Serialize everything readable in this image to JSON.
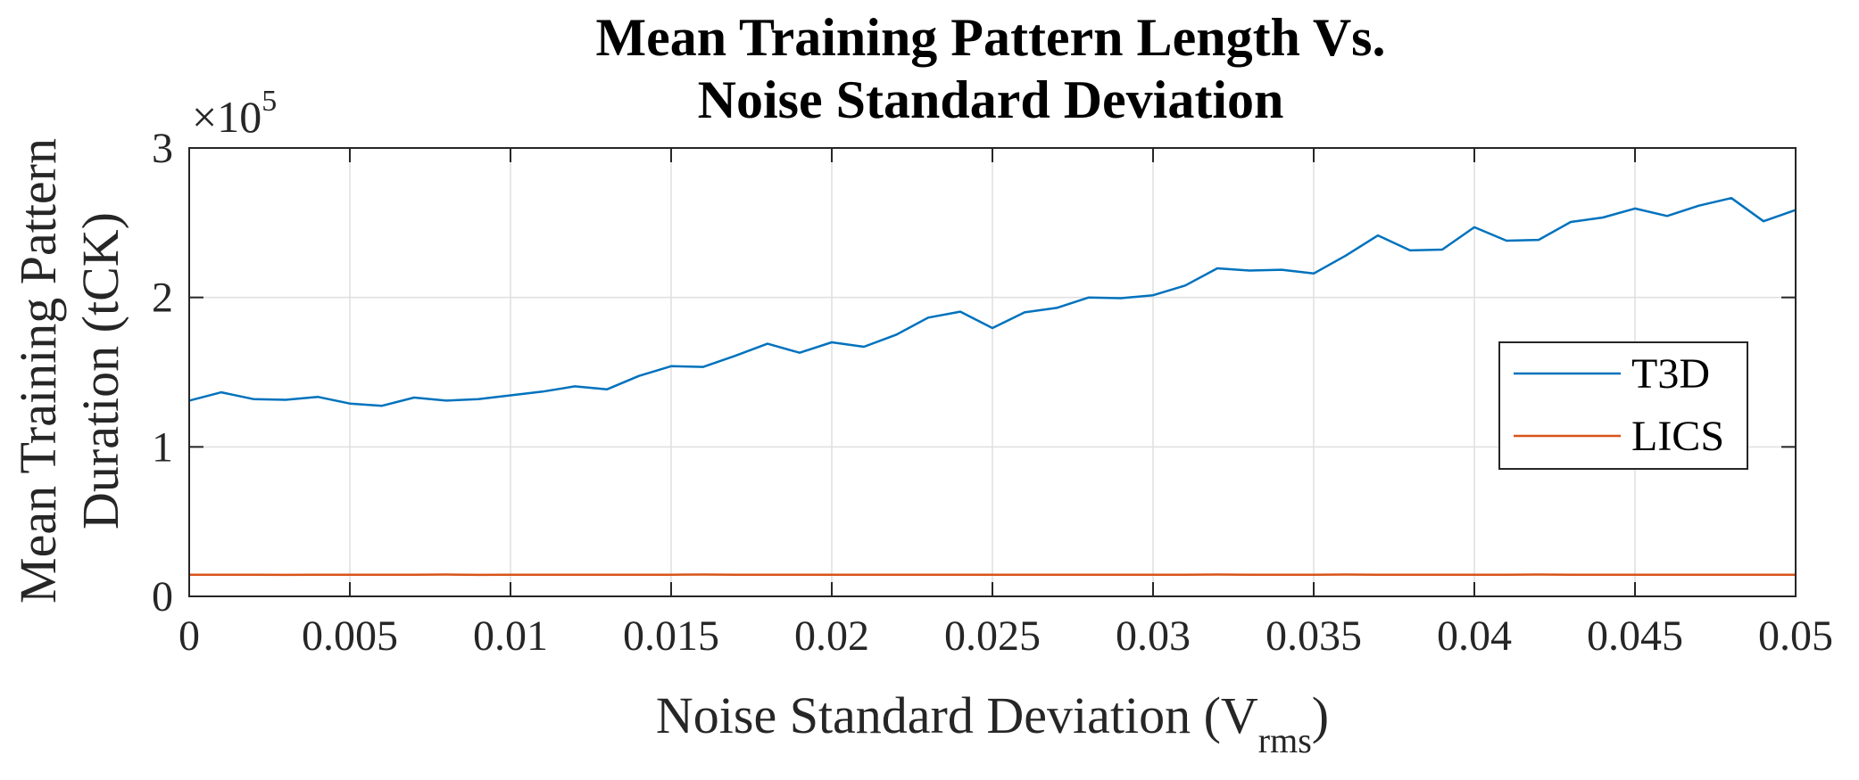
{
  "chart_data": {
    "type": "line",
    "title": [
      "Mean Training Pattern Length Vs.",
      "Noise Standard Deviation"
    ],
    "xlabel": "Noise Standard Deviation (V",
    "xlabel_sub": "rms",
    "xlabel_suffix": ")",
    "ylabel": [
      "Mean Training Pattern",
      "Duration (tCK)"
    ],
    "y_exponent_prefix": "×10",
    "y_exponent": "5",
    "xlim": [
      0,
      0.05
    ],
    "ylim": [
      0,
      300000
    ],
    "xticks": [
      0,
      0.005,
      0.01,
      0.015,
      0.02,
      0.025,
      0.03,
      0.035,
      0.04,
      0.045,
      0.05
    ],
    "xtick_labels": [
      "0",
      "0.005",
      "0.01",
      "0.015",
      "0.02",
      "0.025",
      "0.03",
      "0.035",
      "0.04",
      "0.045",
      "0.05"
    ],
    "yticks": [
      0,
      100000,
      200000,
      300000
    ],
    "ytick_labels": [
      "0",
      "1",
      "2",
      "3"
    ],
    "grid": true,
    "legend_position": "right-middle",
    "x": [
      0,
      0.001,
      0.002,
      0.003,
      0.004,
      0.005,
      0.006,
      0.007,
      0.008,
      0.009,
      0.01,
      0.011,
      0.012,
      0.013,
      0.014,
      0.015,
      0.016,
      0.017,
      0.018,
      0.019,
      0.02,
      0.021,
      0.022,
      0.023,
      0.024,
      0.025,
      0.026,
      0.027,
      0.028,
      0.029,
      0.03,
      0.031,
      0.032,
      0.033,
      0.034,
      0.035,
      0.036,
      0.037,
      0.038,
      0.039,
      0.04,
      0.041,
      0.042,
      0.043,
      0.044,
      0.045,
      0.046,
      0.047,
      0.048,
      0.049,
      0.05
    ],
    "series": [
      {
        "name": "T3D",
        "color": "#0072BD",
        "values": [
          131000,
          136500,
          132000,
          131500,
          133500,
          129000,
          127500,
          133000,
          131000,
          132000,
          134500,
          137000,
          140500,
          138500,
          147500,
          154000,
          153500,
          161000,
          169000,
          163000,
          170000,
          167000,
          175000,
          186500,
          190500,
          179500,
          190000,
          193000,
          200000,
          199500,
          201500,
          208000,
          219500,
          218000,
          218500,
          216000,
          228000,
          241500,
          231500,
          232000,
          247000,
          238000,
          238500,
          250500,
          253500,
          259500,
          254500,
          261500,
          266500,
          251000,
          258500
        ]
      },
      {
        "name": "LICS",
        "color": "#D95319",
        "values": [
          14500,
          14500,
          14500,
          14400,
          14500,
          14500,
          14500,
          14500,
          14600,
          14400,
          14500,
          14500,
          14500,
          14500,
          14500,
          14500,
          14600,
          14500,
          14500,
          14500,
          14500,
          14500,
          14500,
          14500,
          14500,
          14500,
          14500,
          14500,
          14500,
          14500,
          14500,
          14500,
          14600,
          14500,
          14500,
          14500,
          14600,
          14500,
          14500,
          14500,
          14500,
          14500,
          14600,
          14500,
          14500,
          14500,
          14500,
          14500,
          14500,
          14500,
          14500
        ]
      }
    ]
  }
}
